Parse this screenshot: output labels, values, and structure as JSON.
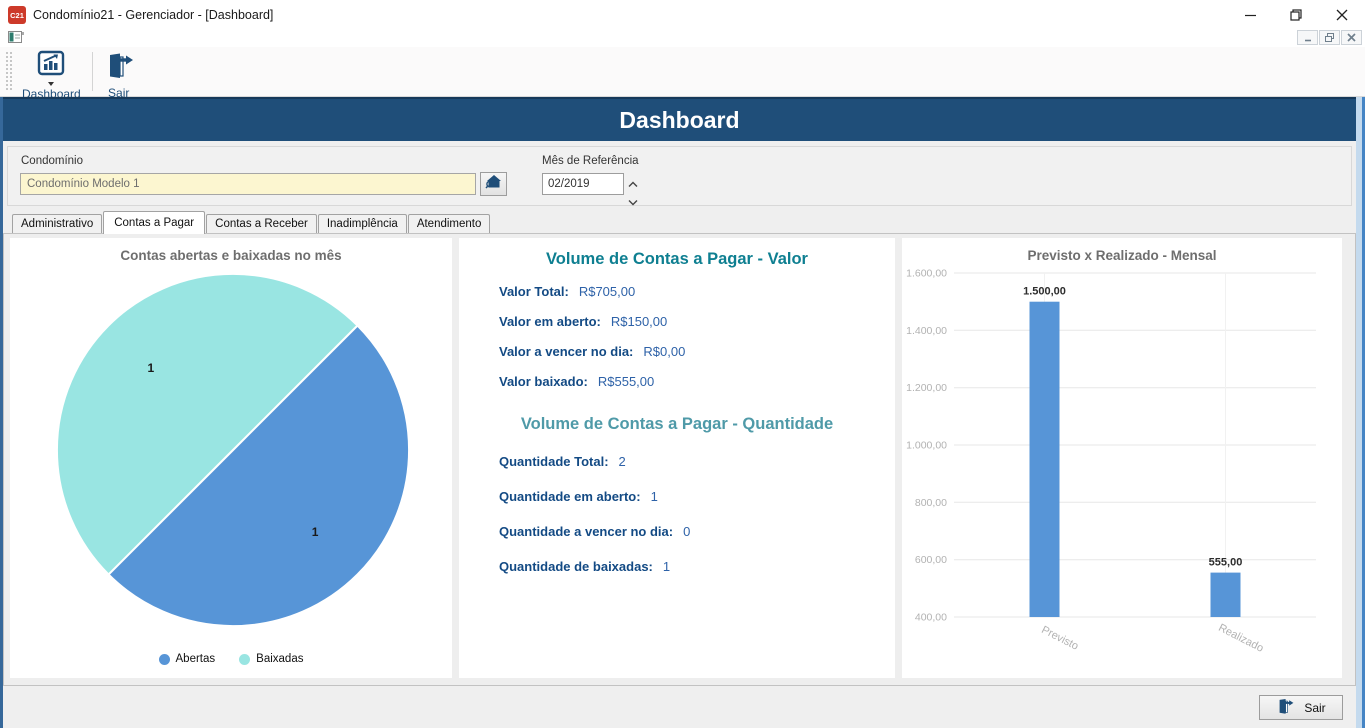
{
  "window": {
    "title": "Condomínio21 - Gerenciador - [Dashboard]",
    "app_badge": "C21"
  },
  "toolbar": {
    "dashboard_label": "Dashboard",
    "sair_label": "Sair"
  },
  "banner": {
    "title": "Dashboard"
  },
  "filters": {
    "condominio": {
      "label": "Condomínio",
      "value": "Condomínio Modelo 1"
    },
    "mes": {
      "label": "Mês de Referência",
      "value": "02/2019"
    }
  },
  "tabs": [
    {
      "label": "Administrativo"
    },
    {
      "label": "Contas a Pagar",
      "active": true
    },
    {
      "label": "Contas a Receber"
    },
    {
      "label": "Inadimplência"
    },
    {
      "label": "Atendimento"
    }
  ],
  "volume": {
    "valor": {
      "title": "Volume de Contas a Pagar - Valor",
      "rows": [
        {
          "label": "Valor Total:",
          "value": "R$705,00"
        },
        {
          "label": "Valor em aberto:",
          "value": "R$150,00"
        },
        {
          "label": "Valor a vencer no dia:",
          "value": "R$0,00"
        },
        {
          "label": "Valor baixado:",
          "value": "R$555,00"
        }
      ]
    },
    "quantidade": {
      "title": "Volume de Contas a Pagar - Quantidade",
      "rows": [
        {
          "label": "Quantidade Total:",
          "value": "2"
        },
        {
          "label": "Quantidade em aberto:",
          "value": "1"
        },
        {
          "label": "Quantidade a vencer no dia:",
          "value": "0"
        },
        {
          "label": "Quantidade de baixadas:",
          "value": "1"
        }
      ]
    }
  },
  "footer": {
    "sair_label": "Sair"
  },
  "colors": {
    "banner_blue": "#1f4e79",
    "heading_teal": "#0e7f91",
    "heading_teal_light": "#4f9aa8",
    "label_navy": "#134a84",
    "value_blue": "#2e62a8",
    "chart_blue": "#5795d7",
    "chart_teal": "#99e5e2"
  },
  "chart_data": [
    {
      "type": "pie",
      "title": "Contas abertas e baixadas no mês",
      "labels": [
        "Abertas",
        "Baixadas"
      ],
      "values": [
        1,
        1
      ],
      "data_labels": [
        "1",
        "1"
      ],
      "colors": [
        "#5795d7",
        "#99e5e2"
      ],
      "start_angle_deg": -45,
      "legend_position": "bottom"
    },
    {
      "type": "bar",
      "title": "Previsto x Realizado - Mensal",
      "categories": [
        "Previsto",
        "Realizado"
      ],
      "values": [
        1500,
        555
      ],
      "value_labels": [
        "1.500,00",
        "555,00"
      ],
      "bar_color": "#5795d7",
      "ylim": [
        400,
        1600
      ],
      "ytick_step": 200,
      "ytick_labels": [
        "400,00",
        "600,00",
        "800,00",
        "1.000,00",
        "1.200,00",
        "1.400,00",
        "1.600,00"
      ],
      "grid": true,
      "xlabel_rotation_deg": 27
    }
  ]
}
